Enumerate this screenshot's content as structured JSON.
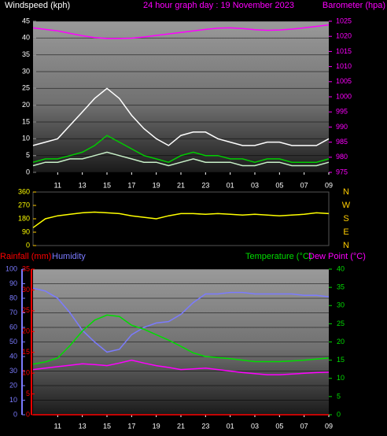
{
  "chart_data": [
    {
      "type": "line",
      "title": "24 hour graph day : 19 November 2023",
      "y_label": "Windspeed (kph)",
      "y2_label": "Barometer (hpa)",
      "categories": [
        null,
        null,
        "11",
        null,
        "13",
        null,
        "15",
        null,
        "17",
        null,
        "19",
        null,
        "21",
        null,
        "23",
        null,
        "01",
        null,
        "03",
        null,
        "05",
        null,
        "07",
        null,
        "09"
      ],
      "ylim": [
        0,
        45
      ],
      "yticks": [
        0,
        5,
        10,
        15,
        20,
        25,
        30,
        35,
        40,
        45
      ],
      "y2lim": [
        975,
        1025
      ],
      "y2ticks": [
        975,
        980,
        985,
        990,
        995,
        1000,
        1005,
        1010,
        1015,
        1020,
        1025
      ],
      "grid": true,
      "series": [
        {
          "color": "#ffffff",
          "values": [
            8,
            9,
            10,
            14,
            18,
            22,
            25,
            22,
            17,
            13,
            10,
            8,
            11,
            12,
            12,
            10,
            9,
            8,
            8,
            9,
            9,
            8,
            8,
            8,
            10
          ]
        },
        {
          "color": "#c8f0c8",
          "values": [
            2,
            3,
            3,
            4,
            4,
            5,
            6,
            5,
            4,
            3,
            3,
            2,
            3,
            4,
            3,
            3,
            3,
            2,
            2,
            3,
            3,
            2,
            2,
            2,
            3
          ]
        },
        {
          "color": "#00cc00",
          "values": [
            3,
            4,
            4,
            5,
            6,
            8,
            11,
            9,
            7,
            5,
            4,
            3,
            5,
            6,
            5,
            5,
            4,
            4,
            3,
            4,
            4,
            3,
            3,
            3,
            4
          ]
        },
        {
          "color": "#ff00ff",
          "axis": "y2",
          "values": [
            1022.8,
            1022.3,
            1021.8,
            1021,
            1020.2,
            1019.6,
            1019.3,
            1019.3,
            1019.4,
            1019.8,
            1020.3,
            1020.8,
            1021.3,
            1021.8,
            1022.3,
            1022.7,
            1022.8,
            1022.6,
            1022.2,
            1022,
            1022.1,
            1022.4,
            1022.8,
            1023.3,
            1023.8
          ]
        }
      ]
    },
    {
      "type": "line",
      "ylim": [
        0,
        360
      ],
      "yticks": [
        0,
        90,
        180,
        270,
        360
      ],
      "y2lim": [
        0,
        360
      ],
      "y2ticks": [
        {
          "value": 360,
          "label": "N"
        },
        {
          "value": 270,
          "label": "W"
        },
        {
          "value": 180,
          "label": "S"
        },
        {
          "value": 90,
          "label": "E"
        },
        {
          "value": 0,
          "label": "N"
        }
      ],
      "series": [
        {
          "color": "#ffff00",
          "values": [
            120,
            180,
            200,
            210,
            220,
            225,
            220,
            215,
            200,
            190,
            180,
            200,
            215,
            215,
            210,
            215,
            210,
            205,
            210,
            205,
            200,
            205,
            210,
            220,
            215
          ]
        }
      ]
    },
    {
      "type": "line",
      "categories": [
        null,
        null,
        "11",
        null,
        "13",
        null,
        "15",
        null,
        "17",
        null,
        "19",
        null,
        "21",
        null,
        "23",
        null,
        "01",
        null,
        "03",
        null,
        "05",
        null,
        "07",
        null,
        "09"
      ],
      "ylim": [
        0,
        100
      ],
      "yticks": [
        0,
        10,
        20,
        30,
        40,
        50,
        60,
        70,
        80,
        90,
        100
      ],
      "y2lim": [
        0,
        40
      ],
      "y2ticks": [
        0,
        5,
        10,
        15,
        20,
        25,
        30,
        35,
        40
      ],
      "y3lim": [
        0,
        35
      ],
      "y3ticks": [
        0,
        5,
        10,
        15,
        20,
        25,
        30,
        35
      ],
      "grid": true,
      "series": [
        {
          "name": "Rainfall (mm)",
          "color": "#ff0000",
          "axis": "y3",
          "values": [
            0,
            0,
            0,
            0,
            0,
            0,
            0,
            0,
            0,
            0,
            0,
            0,
            0,
            0,
            0,
            0,
            0,
            0,
            0,
            0,
            0,
            0,
            0,
            0,
            0
          ]
        },
        {
          "name": "Humidity",
          "color": "#7b7bff",
          "values": [
            87,
            85,
            80,
            70,
            58,
            50,
            43,
            45,
            55,
            60,
            63,
            64,
            69,
            77,
            83,
            83,
            84,
            84,
            83,
            83,
            83,
            83,
            82,
            82,
            81
          ]
        },
        {
          "name": "Temperature (°C)",
          "color": "#00dd00",
          "axis": "y2",
          "values": [
            13.9,
            14.5,
            15.6,
            19,
            23,
            26,
            27.4,
            27,
            24.6,
            23.5,
            22,
            20.5,
            18.8,
            17,
            16,
            15.7,
            15.4,
            15,
            14.6,
            14.6,
            14.6,
            14.8,
            15,
            15.3,
            15.6
          ]
        },
        {
          "name": "Dew Point (°C)",
          "color": "#ff00ff",
          "axis": "y2",
          "values": [
            12.4,
            12.8,
            13.2,
            13.6,
            14,
            13.8,
            13.5,
            14.2,
            15,
            14.2,
            13.5,
            13,
            12.4,
            12.6,
            12.8,
            12.4,
            12,
            11.6,
            11.3,
            11,
            11,
            11.2,
            11.4,
            11.6,
            11.7
          ]
        }
      ]
    }
  ]
}
